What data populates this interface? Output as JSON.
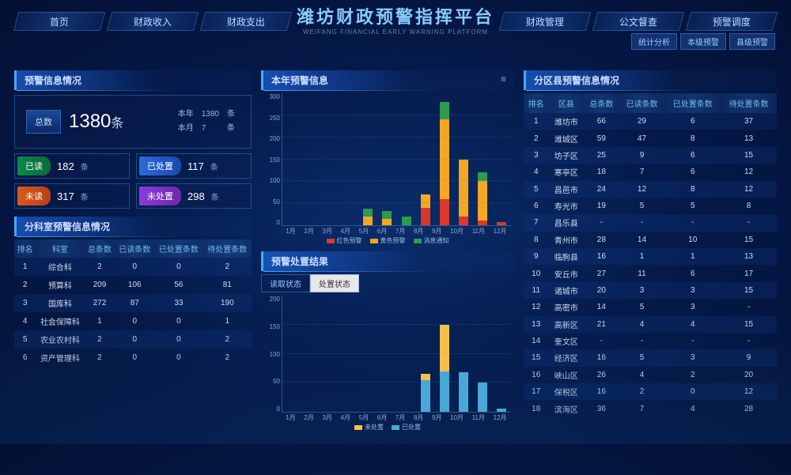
{
  "header": {
    "title": "潍坊财政预警指挥平台",
    "subtitle": "WEIFANG FINANCIAL EARLY WARNING PLATFORM"
  },
  "nav": {
    "left": [
      "首页",
      "财政收入",
      "财政支出"
    ],
    "right": [
      "财政管理",
      "公文督查",
      "预警调度"
    ],
    "sub": [
      "统计分析",
      "本级预警",
      "县级预警"
    ]
  },
  "panels": {
    "warn_info": "预警信息情况",
    "dept": "分科室预警信息情况",
    "year_info": "本年预警信息",
    "result": "预警处置结果",
    "district": "分区县预警信息情况"
  },
  "stats": {
    "total_label": "总数",
    "total_value": "1380",
    "total_unit": "条",
    "side": [
      [
        "本年",
        "1380",
        "条"
      ],
      [
        "本月",
        "7",
        "条"
      ]
    ],
    "chips": [
      {
        "tag": "已读",
        "cls": "tag-green",
        "num": "182",
        "unit": "条"
      },
      {
        "tag": "已处置",
        "cls": "tag-blue",
        "num": "117",
        "unit": "条"
      },
      {
        "tag": "未读",
        "cls": "tag-orange",
        "num": "317",
        "unit": "条"
      },
      {
        "tag": "未处置",
        "cls": "tag-purple",
        "num": "298",
        "unit": "条"
      }
    ]
  },
  "dept_table": {
    "cols": [
      "排名",
      "科室",
      "总条数",
      "已读条数",
      "已处置条数",
      "待处置条数"
    ],
    "rows": [
      [
        "1",
        "综合科",
        "2",
        "0",
        "0",
        "2"
      ],
      [
        "2",
        "预算科",
        "209",
        "106",
        "56",
        "81"
      ],
      [
        "3",
        "国库科",
        "272",
        "87",
        "33",
        "190"
      ],
      [
        "4",
        "社会保障科",
        "1",
        "0",
        "0",
        "1"
      ],
      [
        "5",
        "农业农村科",
        "2",
        "0",
        "0",
        "2"
      ],
      [
        "6",
        "资产管理科",
        "2",
        "0",
        "0",
        "2"
      ]
    ]
  },
  "district_table": {
    "cols": [
      "排名",
      "区县",
      "总条数",
      "已读条数",
      "已处置条数",
      "待处置条数"
    ],
    "rows": [
      [
        "1",
        "潍坊市",
        "66",
        "29",
        "6",
        "37"
      ],
      [
        "2",
        "潍城区",
        "59",
        "47",
        "8",
        "13"
      ],
      [
        "3",
        "坊子区",
        "25",
        "9",
        "6",
        "15"
      ],
      [
        "4",
        "寒亭区",
        "18",
        "7",
        "6",
        "12"
      ],
      [
        "5",
        "昌邑市",
        "24",
        "12",
        "8",
        "12"
      ],
      [
        "6",
        "寿光市",
        "19",
        "5",
        "5",
        "8"
      ],
      [
        "7",
        "昌乐县",
        "-",
        "-",
        "-",
        "-"
      ],
      [
        "8",
        "青州市",
        "28",
        "14",
        "10",
        "15"
      ],
      [
        "9",
        "临朐县",
        "16",
        "1",
        "1",
        "13"
      ],
      [
        "10",
        "安丘市",
        "27",
        "11",
        "6",
        "17"
      ],
      [
        "11",
        "诸城市",
        "20",
        "3",
        "3",
        "15"
      ],
      [
        "12",
        "高密市",
        "14",
        "5",
        "3",
        "-"
      ],
      [
        "13",
        "高新区",
        "21",
        "4",
        "4",
        "15"
      ],
      [
        "14",
        "奎文区",
        "-",
        "-",
        "-",
        "-"
      ],
      [
        "15",
        "经济区",
        "16",
        "5",
        "3",
        "9"
      ],
      [
        "16",
        "峡山区",
        "26",
        "4",
        "2",
        "20"
      ],
      [
        "17",
        "保税区",
        "16",
        "2",
        "0",
        "12"
      ],
      [
        "18",
        "滨海区",
        "36",
        "7",
        "4",
        "28"
      ]
    ]
  },
  "chart1": {
    "ymax": 300,
    "yticks": [
      "300",
      "250",
      "200",
      "150",
      "100",
      "50",
      "0"
    ],
    "months": [
      "1月",
      "2月",
      "3月",
      "4月",
      "5月",
      "6月",
      "7月",
      "8月",
      "9月",
      "10月",
      "11月",
      "12月"
    ],
    "legend": [
      [
        "红色预警",
        "#d9382a"
      ],
      [
        "黄色预警",
        "#f5a623"
      ],
      [
        "消息通知",
        "#2e9b4f"
      ]
    ],
    "series": [
      {
        "red": 0,
        "yellow": 0,
        "green": 0
      },
      {
        "red": 0,
        "yellow": 0,
        "green": 0
      },
      {
        "red": 0,
        "yellow": 0,
        "green": 0
      },
      {
        "red": 0,
        "yellow": 0,
        "green": 0
      },
      {
        "red": 0,
        "yellow": 20,
        "green": 18
      },
      {
        "red": 0,
        "yellow": 15,
        "green": 18
      },
      {
        "red": 0,
        "yellow": 0,
        "green": 20
      },
      {
        "red": 40,
        "yellow": 30,
        "green": 0
      },
      {
        "red": 60,
        "yellow": 180,
        "green": 40
      },
      {
        "red": 20,
        "yellow": 130,
        "green": 0
      },
      {
        "red": 10,
        "yellow": 90,
        "green": 20
      },
      {
        "red": 8,
        "yellow": 0,
        "green": 0
      }
    ]
  },
  "chart2": {
    "ymax": 200,
    "yticks": [
      "200",
      "150",
      "100",
      "50",
      "0"
    ],
    "months": [
      "1月",
      "2月",
      "3月",
      "4月",
      "5月",
      "6月",
      "7月",
      "8月",
      "9月",
      "10月",
      "11月",
      "12月"
    ],
    "tabs": [
      "读取状态",
      "处置状态"
    ],
    "legend": [
      [
        "未处置",
        "#f5c04a"
      ],
      [
        "已处置",
        "#4aa8d8"
      ]
    ],
    "series": [
      {
        "a": 0,
        "b": 0
      },
      {
        "a": 0,
        "b": 0
      },
      {
        "a": 0,
        "b": 0
      },
      {
        "a": 0,
        "b": 0
      },
      {
        "a": 0,
        "b": 0
      },
      {
        "a": 0,
        "b": 0
      },
      {
        "a": 0,
        "b": 0
      },
      {
        "a": 55,
        "b": 10
      },
      {
        "a": 70,
        "b": 80
      },
      {
        "a": 68,
        "b": 0
      },
      {
        "a": 50,
        "b": 0
      },
      {
        "a": 5,
        "b": 0
      }
    ]
  },
  "colors": {
    "red": "#d9382a",
    "yellow": "#f5a623",
    "green": "#2e9b4f",
    "blue": "#4aa8d8",
    "gold": "#f5c04a"
  }
}
